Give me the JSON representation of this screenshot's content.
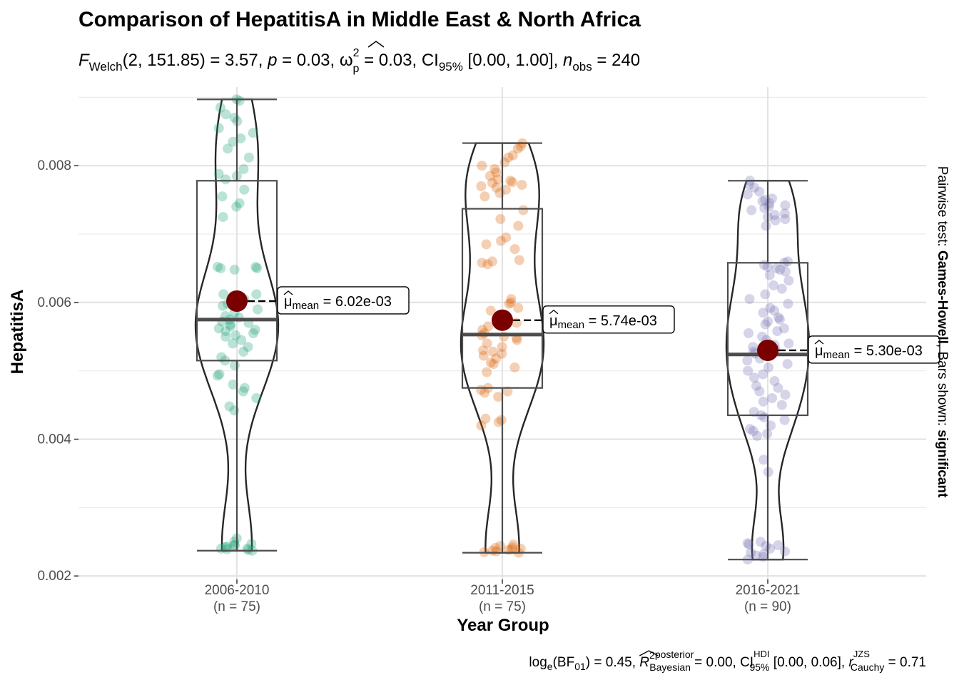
{
  "chart_data": {
    "type": "violin",
    "title": "Comparison of HepatitisA in Middle East & North Africa",
    "subtitle": {
      "f_symbol": "F",
      "f_sub": "Welch",
      "df": "(2, 151.85)",
      "stat": " = 3.57, ",
      "p_symbol": "p",
      "p_value": " = 0.03, ",
      "omega": "ω",
      "omega_sup": "2",
      "omega_sub": "p",
      "omega_value": " = 0.03, CI",
      "ci_sub": "95%",
      "ci_value": " [0.00, 1.00], ",
      "n_symbol": "n",
      "n_sub": "obs",
      "n_value": " = 240"
    },
    "xlabel": "Year Group",
    "ylabel": "HepatitisA",
    "ylim": [
      0.00195,
      0.00915
    ],
    "y_ticks": [
      0.002,
      0.004,
      0.006,
      0.008
    ],
    "y_tick_labels": [
      "0.002",
      "0.004",
      "0.006",
      "0.008"
    ],
    "y_minor": [
      0.003,
      0.005,
      0.007,
      0.009
    ],
    "grid": true,
    "groups": [
      {
        "name": "2006-2010",
        "count_label": "(n = 75)",
        "color": "#1b9e77",
        "min": 0.00237,
        "q1": 0.00515,
        "median": 0.00575,
        "q3": 0.00778,
        "max": 0.00897,
        "mean": 0.00602,
        "mean_label": "= 6.02e-03",
        "points": [
          0.00897,
          0.00895,
          0.00885,
          0.00875,
          0.0087,
          0.00865,
          0.00855,
          0.00848,
          0.0084,
          0.00835,
          0.00825,
          0.00812,
          0.00795,
          0.00788,
          0.00785,
          0.0078,
          0.00765,
          0.00755,
          0.00745,
          0.0074,
          0.00725,
          0.00652,
          0.00652,
          0.0065,
          0.0065,
          0.00648,
          0.00612,
          0.00612,
          0.0061,
          0.00608,
          0.00605,
          0.00598,
          0.00595,
          0.0059,
          0.00585,
          0.0058,
          0.00578,
          0.00575,
          0.00572,
          0.0057,
          0.00568,
          0.00565,
          0.00562,
          0.0056,
          0.00558,
          0.00555,
          0.00552,
          0.0055,
          0.00545,
          0.0054,
          0.00535,
          0.00528,
          0.0052,
          0.00515,
          0.00508,
          0.00495,
          0.00493,
          0.0048,
          0.00475,
          0.0047,
          0.0046,
          0.00448,
          0.00442,
          0.00255,
          0.0025,
          0.00247,
          0.00245,
          0.00245,
          0.00243,
          0.00242,
          0.0024,
          0.0024,
          0.00239,
          0.00238,
          0.00237
        ]
      },
      {
        "name": "2011-2015",
        "count_label": "(n = 75)",
        "color": "#d95f02",
        "min": 0.00234,
        "q1": 0.00475,
        "median": 0.00553,
        "q3": 0.00737,
        "max": 0.00833,
        "mean": 0.00574,
        "mean_label": "= 5.74e-03",
        "points": [
          0.00833,
          0.00828,
          0.00825,
          0.00815,
          0.00812,
          0.00805,
          0.008,
          0.00795,
          0.0079,
          0.00785,
          0.0078,
          0.00778,
          0.00776,
          0.00775,
          0.00772,
          0.0077,
          0.00768,
          0.00765,
          0.0076,
          0.00755,
          0.00735,
          0.00722,
          0.00712,
          0.00695,
          0.0069,
          0.00685,
          0.00678,
          0.00662,
          0.0066,
          0.00658,
          0.00656,
          0.00605,
          0.006,
          0.00598,
          0.00592,
          0.00588,
          0.0057,
          0.00565,
          0.0056,
          0.00555,
          0.00552,
          0.0055,
          0.00548,
          0.00545,
          0.0054,
          0.00535,
          0.0053,
          0.00528,
          0.00525,
          0.00522,
          0.00518,
          0.00512,
          0.0051,
          0.00505,
          0.00498,
          0.00475,
          0.00472,
          0.0047,
          0.00468,
          0.00462,
          0.0043,
          0.00428,
          0.00425,
          0.0042,
          0.00246,
          0.00244,
          0.00242,
          0.00241,
          0.0024,
          0.00239,
          0.00238,
          0.00237,
          0.00236,
          0.00235,
          0.00234
        ]
      },
      {
        "name": "2016-2021",
        "count_label": "(n = 90)",
        "color": "#7570b3",
        "min": 0.00224,
        "q1": 0.00435,
        "median": 0.00524,
        "q3": 0.00658,
        "max": 0.00778,
        "mean": 0.0053,
        "mean_label": "= 5.30e-03",
        "points": [
          0.00778,
          0.00772,
          0.00768,
          0.00762,
          0.00758,
          0.00752,
          0.0075,
          0.00748,
          0.00745,
          0.00742,
          0.0074,
          0.00738,
          0.00735,
          0.0073,
          0.00728,
          0.00725,
          0.00722,
          0.0072,
          0.00712,
          0.0066,
          0.00658,
          0.00655,
          0.00652,
          0.0065,
          0.00648,
          0.00645,
          0.0064,
          0.00632,
          0.00625,
          0.0062,
          0.00612,
          0.00605,
          0.00598,
          0.00592,
          0.00588,
          0.00585,
          0.00578,
          0.00575,
          0.00572,
          0.00568,
          0.00562,
          0.00558,
          0.00555,
          0.0055,
          0.00545,
          0.0054,
          0.00538,
          0.00535,
          0.00532,
          0.00528,
          0.00525,
          0.00522,
          0.00518,
          0.00515,
          0.0051,
          0.00505,
          0.005,
          0.00495,
          0.0049,
          0.00485,
          0.00478,
          0.00475,
          0.0047,
          0.00465,
          0.0046,
          0.00455,
          0.0045,
          0.0044,
          0.00435,
          0.00432,
          0.00428,
          0.0042,
          0.00415,
          0.00412,
          0.00408,
          0.00405,
          0.0037,
          0.00352,
          0.0025,
          0.00248,
          0.00246,
          0.00245,
          0.00244,
          0.0024,
          0.00236,
          0.00234,
          0.00232,
          0.0023,
          0.00228,
          0.00224
        ]
      }
    ],
    "mean_point_color": "#7a0000",
    "caption": {
      "log": "log",
      "log_sub": "e",
      "bf": "(BF",
      "bf_sub": "01",
      "bf_value": ") = 0.45, ",
      "r_symbol": "R",
      "r_sup": "2",
      "r_sup2": "posterior",
      "r_sub": "Bayesian",
      "r_value": " = 0.00, CI",
      "ci_sup": "HDI",
      "ci_sub": "95%",
      "ci_value": " [0.00, 0.06], ",
      "rc_symbol": "r",
      "rc_sup": "JZS",
      "rc_sub": "Cauchy",
      "rc_value": " = 0.71"
    },
    "side_label": {
      "prefix": "Pairwise test: ",
      "test": "Games-Howell",
      "middle": ", Bars shown: ",
      "shown": "significant"
    },
    "mean_symbol": "μ",
    "mean_sub": "mean"
  }
}
